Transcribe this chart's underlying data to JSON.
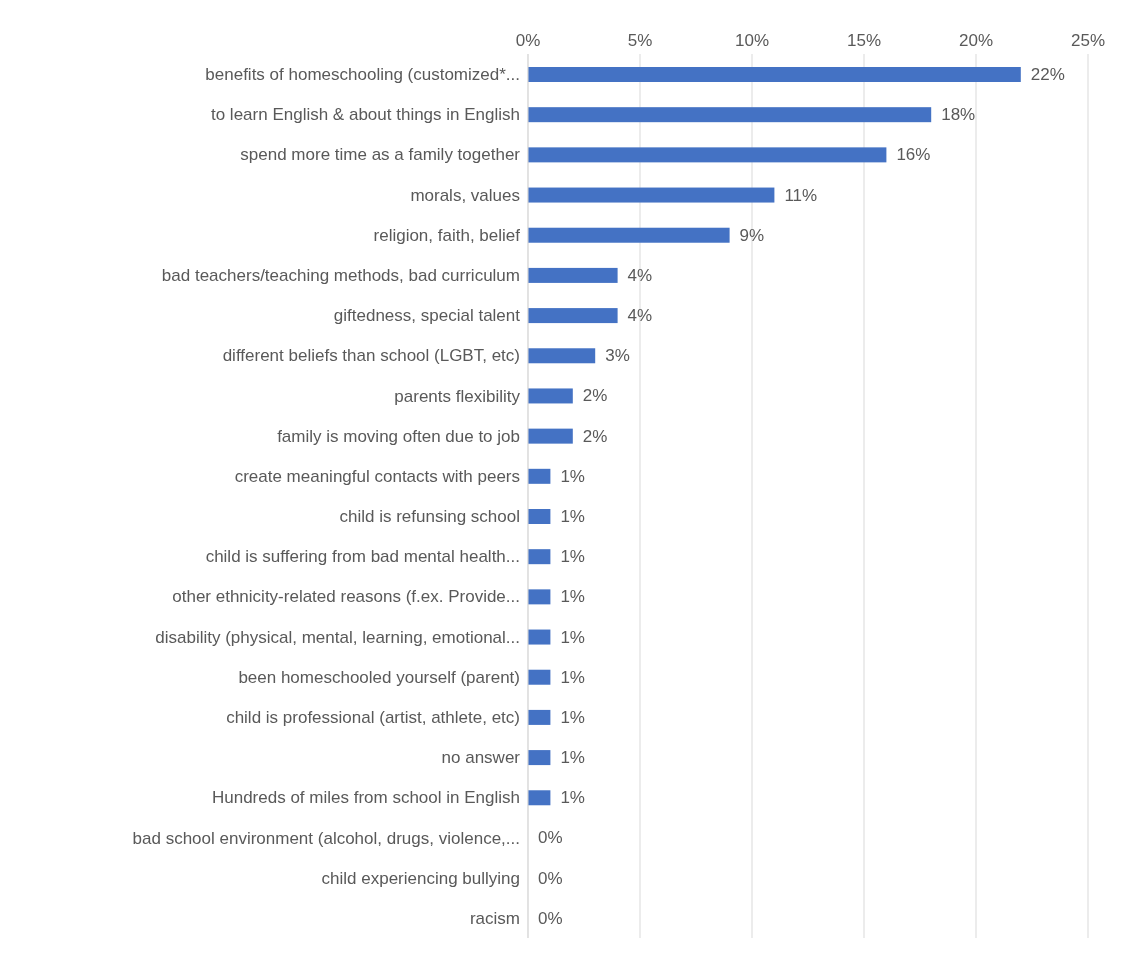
{
  "chart_data": {
    "type": "bar",
    "orientation": "horizontal",
    "categories": [
      "benefits of homeschooling (customized*...",
      "to learn English & about things in English",
      "spend more time as a family together",
      "morals, values",
      "religion, faith, belief",
      "bad teachers/teaching methods, bad curriculum",
      "giftedness, special talent",
      "different beliefs than school (LGBT, etc)",
      "parents flexibility",
      "family is moving often due to job",
      "create meaningful contacts with peers",
      "child is refunsing school",
      "child is suffering from bad mental health...",
      "other ethnicity-related reasons (f.ex. Provide...",
      "disability (physical, mental, learning, emotional...",
      "been homeschooled yourself (parent)",
      "child is professional (artist, athlete, etc)",
      "no answer",
      "Hundreds of miles from school in English",
      "bad school environment (alcohol, drugs, violence,...",
      "child experiencing bullying",
      "racism"
    ],
    "values": [
      22,
      18,
      16,
      11,
      9,
      4,
      4,
      3,
      2,
      2,
      1,
      1,
      1,
      1,
      1,
      1,
      1,
      1,
      1,
      0,
      0,
      0
    ],
    "value_labels": [
      "22%",
      "18%",
      "16%",
      "11%",
      "9%",
      "4%",
      "4%",
      "3%",
      "2%",
      "2%",
      "1%",
      "1%",
      "1%",
      "1%",
      "1%",
      "1%",
      "1%",
      "1%",
      "1%",
      "0%",
      "0%",
      "0%"
    ],
    "color": "#4472c4",
    "xlim": [
      0,
      25
    ],
    "xticks": [
      {
        "value": 0,
        "label": "0%"
      },
      {
        "value": 5,
        "label": "5%"
      },
      {
        "value": 10,
        "label": "10%"
      },
      {
        "value": 15,
        "label": "15%"
      },
      {
        "value": 20,
        "label": "20%"
      },
      {
        "value": 25,
        "label": "25%"
      }
    ],
    "grid": "x",
    "legend": false
  }
}
